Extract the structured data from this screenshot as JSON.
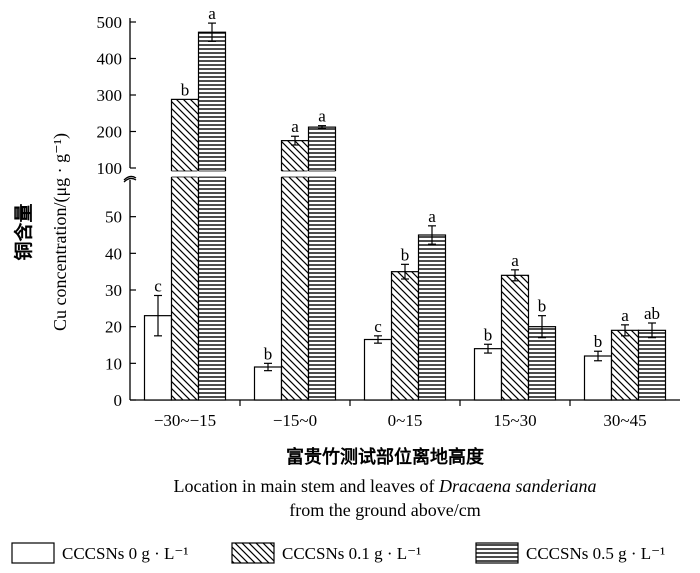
{
  "chart_data": {
    "type": "bar",
    "ylabel_cn": "铜含量",
    "ylabel_en": "Cu concentration/(μg · g⁻¹)",
    "xlabel_cn": "富贵竹测试部位离地高度",
    "xlabel_en_line1_prefix": "Location in main stem and leaves of ",
    "xlabel_en_line1_italic": "Dracaena sanderiana",
    "xlabel_en_line2": "from the ground above/cm",
    "categories": [
      "−30~−15",
      "−15~0",
      "0~15",
      "15~30",
      "30~45"
    ],
    "yaxis_broken": true,
    "ylim_lower": [
      0,
      60
    ],
    "ylim_upper": [
      100,
      500
    ],
    "yticks_lower": [
      "0",
      "10",
      "20",
      "30",
      "40",
      "50"
    ],
    "yticks_upper": [
      "100",
      "200",
      "300",
      "400",
      "500"
    ],
    "series": [
      {
        "name": "CCCSNs 0 g · L⁻¹",
        "pattern": "none",
        "values": [
          23,
          9,
          16.5,
          14,
          12
        ],
        "errors": [
          5.5,
          1,
          1,
          1.2,
          1.3
        ],
        "letters": [
          "c",
          "b",
          "c",
          "b",
          "b"
        ]
      },
      {
        "name": "CCCSNs 0.1 g · L⁻¹",
        "pattern": "diagonal",
        "values": [
          288,
          175,
          35,
          34,
          19
        ],
        "errors": [
          0,
          12,
          2,
          1.5,
          1.5
        ],
        "letters": [
          "b",
          "a",
          "b",
          "a",
          "a"
        ]
      },
      {
        "name": "CCCSNs 0.5 g · L⁻¹",
        "pattern": "horizontal",
        "values": [
          472,
          212,
          45,
          20,
          19
        ],
        "errors": [
          25,
          4,
          2.5,
          3,
          2
        ],
        "letters": [
          "a",
          "a",
          "a",
          "b",
          "ab"
        ]
      }
    ]
  }
}
